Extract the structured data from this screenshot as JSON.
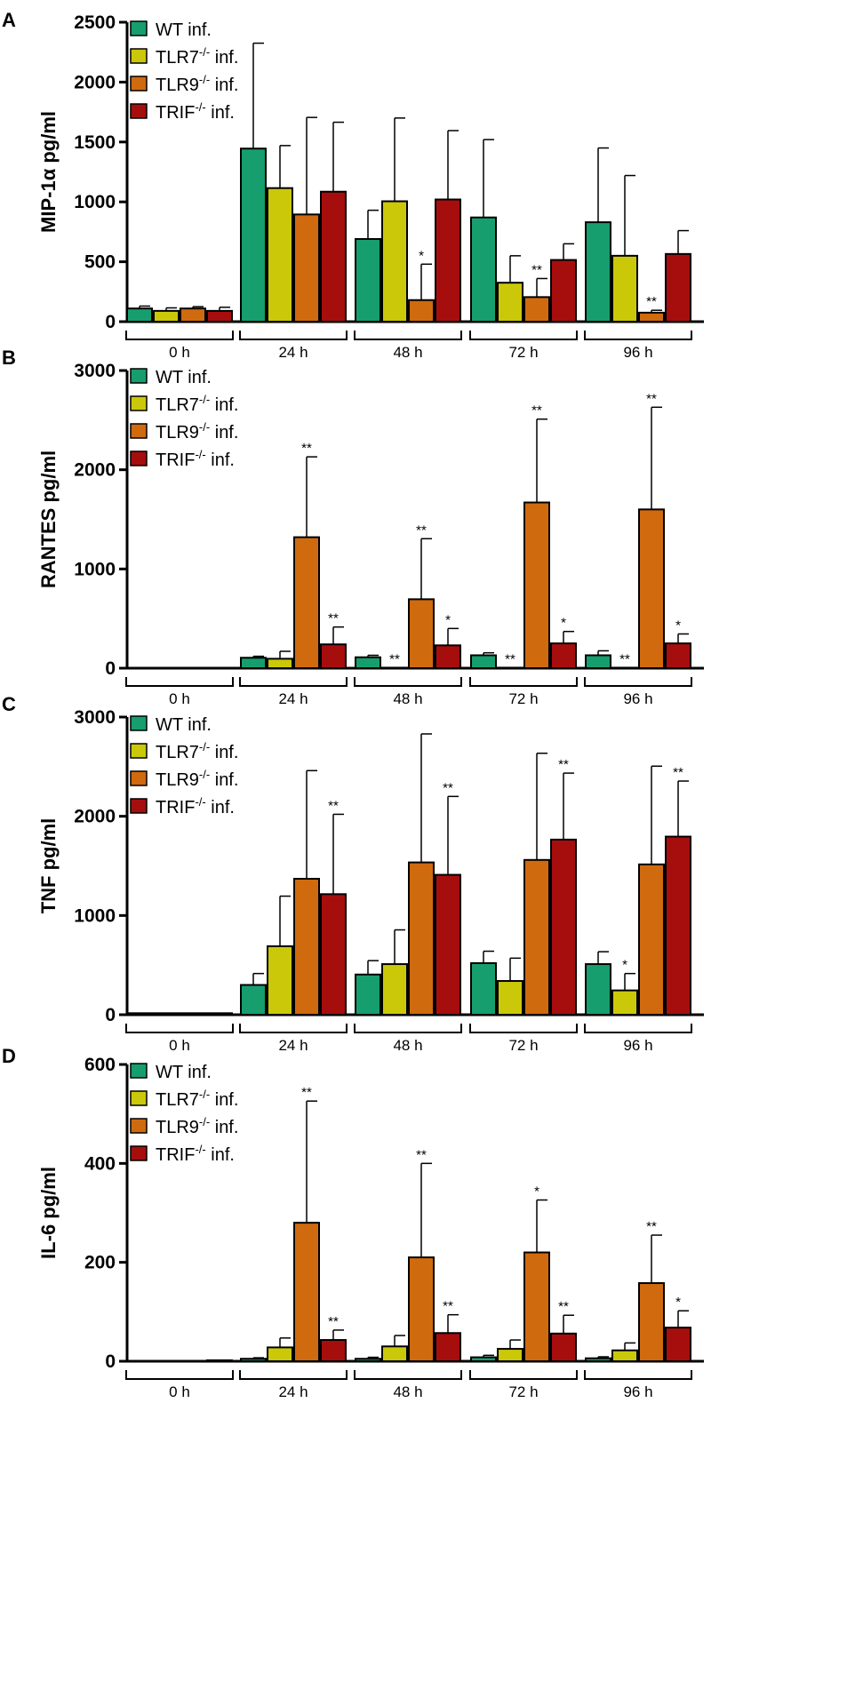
{
  "chart_data": [
    {
      "panel": "A",
      "type": "bar",
      "ylabel": "MIP-1α pg/ml",
      "ylim": [
        0,
        2500
      ],
      "yticks": [
        0,
        500,
        1000,
        1500,
        2000,
        2500
      ],
      "categories": [
        "0 h",
        "24 h",
        "48 h",
        "72 h",
        "96 h"
      ],
      "legend": [
        {
          "base": "WT",
          "sup": "",
          "suffix": " inf."
        },
        {
          "base": "TLR7",
          "sup": "-/-",
          "suffix": " inf."
        },
        {
          "base": "TLR9",
          "sup": "-/-",
          "suffix": " inf."
        },
        {
          "base": "TRIF",
          "sup": "-/-",
          "suffix": " inf."
        }
      ],
      "series": [
        {
          "name": "WT inf.",
          "values": [
            110,
            1445,
            690,
            870,
            830
          ],
          "errors": [
            20,
            880,
            240,
            650,
            620
          ],
          "annotations": [
            "",
            "",
            "",
            "",
            ""
          ]
        },
        {
          "name": "TLR7-/- inf.",
          "values": [
            90,
            1115,
            1005,
            325,
            550
          ],
          "errors": [
            25,
            355,
            695,
            225,
            670
          ],
          "annotations": [
            "",
            "",
            "",
            "",
            ""
          ]
        },
        {
          "name": "TLR9-/- inf.",
          "values": [
            110,
            895,
            180,
            205,
            75
          ],
          "errors": [
            15,
            810,
            300,
            155,
            20
          ],
          "annotations": [
            "",
            "",
            "*",
            "**",
            "**"
          ]
        },
        {
          "name": "TRIF-/- inf.",
          "values": [
            90,
            1085,
            1020,
            515,
            565
          ],
          "errors": [
            30,
            580,
            575,
            135,
            195
          ],
          "annotations": [
            "",
            "",
            "",
            "",
            ""
          ]
        }
      ]
    },
    {
      "panel": "B",
      "type": "bar",
      "ylabel": "RANTES pg/ml",
      "ylim": [
        0,
        3000
      ],
      "yticks": [
        0,
        1000,
        2000,
        3000
      ],
      "categories": [
        "0 h",
        "24 h",
        "48 h",
        "72 h",
        "96 h"
      ],
      "legend": [
        {
          "base": "WT ",
          "sup": "",
          "suffix": " inf."
        },
        {
          "base": "TLR7",
          "sup": "-/-",
          "suffix": " inf."
        },
        {
          "base": "TLR9",
          "sup": "-/-",
          "suffix": " inf."
        },
        {
          "base": "TRIF",
          "sup": "-/-",
          "suffix": " inf."
        }
      ],
      "series": [
        {
          "name": "WT inf.",
          "values": [
            0,
            105,
            110,
            130,
            130
          ],
          "errors": [
            0,
            15,
            20,
            25,
            45
          ],
          "annotations": [
            "",
            "",
            "",
            "",
            ""
          ]
        },
        {
          "name": "TLR7-/- inf.",
          "values": [
            0,
            95,
            5,
            5,
            5
          ],
          "errors": [
            0,
            75,
            0,
            0,
            0
          ],
          "annotations": [
            "",
            "",
            "**",
            "**",
            "**"
          ]
        },
        {
          "name": "TLR9-/- inf.",
          "values": [
            0,
            1320,
            695,
            1670,
            1600
          ],
          "errors": [
            0,
            810,
            610,
            840,
            1030
          ],
          "annotations": [
            "",
            "**",
            "**",
            "**",
            "**"
          ]
        },
        {
          "name": "TRIF-/- inf.",
          "values": [
            0,
            240,
            230,
            250,
            250
          ],
          "errors": [
            0,
            175,
            170,
            120,
            95
          ],
          "annotations": [
            "",
            "**",
            "*",
            "*",
            "*"
          ]
        }
      ]
    },
    {
      "panel": "C",
      "type": "bar",
      "ylabel": "TNF pg/ml",
      "ylim": [
        0,
        3000
      ],
      "yticks": [
        0,
        1000,
        2000,
        3000
      ],
      "categories": [
        "0 h",
        "24 h",
        "48 h",
        "72 h",
        "96 h"
      ],
      "legend": [
        {
          "base": "WT",
          "sup": "",
          "suffix": " inf."
        },
        {
          "base": "TLR7",
          "sup": "-/-",
          "suffix": " inf."
        },
        {
          "base": "TLR9",
          "sup": "-/-",
          "suffix": " inf."
        },
        {
          "base": "TRIF",
          "sup": "-/-",
          "suffix": " inf."
        }
      ],
      "series": [
        {
          "name": "WT inf.",
          "values": [
            15,
            300,
            405,
            520,
            510
          ],
          "errors": [
            0,
            115,
            140,
            120,
            125
          ],
          "annotations": [
            "",
            "",
            "",
            "",
            ""
          ]
        },
        {
          "name": "TLR7-/- inf.",
          "values": [
            15,
            690,
            510,
            340,
            245
          ],
          "errors": [
            0,
            505,
            345,
            230,
            170
          ],
          "annotations": [
            "",
            "",
            "",
            "",
            "*"
          ]
        },
        {
          "name": "TLR9-/- inf.",
          "values": [
            15,
            1370,
            1535,
            1560,
            1515
          ],
          "errors": [
            0,
            1090,
            1295,
            1075,
            990
          ],
          "annotations": [
            "",
            "",
            "",
            "",
            ""
          ]
        },
        {
          "name": "TRIF-/- inf.",
          "values": [
            15,
            1215,
            1410,
            1765,
            1795
          ],
          "errors": [
            0,
            805,
            790,
            670,
            560
          ],
          "annotations": [
            "",
            "**",
            "**",
            "**",
            "**"
          ]
        }
      ]
    },
    {
      "panel": "D",
      "type": "bar",
      "ylabel": "IL-6 pg/ml",
      "ylim": [
        0,
        600
      ],
      "yticks": [
        0,
        200,
        400,
        600
      ],
      "categories": [
        "0 h",
        "24 h",
        "48 h",
        "72 h",
        "96 h"
      ],
      "legend": [
        {
          "base": "WT",
          "sup": "",
          "suffix": " inf."
        },
        {
          "base": "TLR7",
          "sup": "-/-",
          "suffix": " inf."
        },
        {
          "base": "TLR9",
          "sup": "-/-",
          "suffix": " inf."
        },
        {
          "base": "TRIF",
          "sup": "-/-",
          "suffix": " inf."
        }
      ],
      "series": [
        {
          "name": "WT inf.",
          "values": [
            0,
            5,
            5,
            8,
            6
          ],
          "errors": [
            0,
            2,
            3,
            4,
            3
          ],
          "annotations": [
            "",
            "",
            "",
            "",
            ""
          ]
        },
        {
          "name": "TLR7-/- inf.",
          "values": [
            0,
            28,
            30,
            25,
            22
          ],
          "errors": [
            0,
            19,
            22,
            18,
            15
          ],
          "annotations": [
            "",
            "",
            "",
            "",
            ""
          ]
        },
        {
          "name": "TLR9-/- inf.",
          "values": [
            0,
            280,
            210,
            220,
            158
          ],
          "errors": [
            0,
            246,
            190,
            106,
            97
          ],
          "annotations": [
            "",
            "**",
            "**",
            "*",
            "**"
          ]
        },
        {
          "name": "TRIF-/- inf.",
          "values": [
            2,
            43,
            57,
            56,
            68
          ],
          "errors": [
            0,
            20,
            37,
            37,
            34
          ],
          "annotations": [
            "",
            "**",
            "**",
            "**",
            "*"
          ]
        }
      ]
    }
  ],
  "colors": {
    "series": [
      "#169E6E",
      "#CBC80A",
      "#D06A0E",
      "#A60E0E"
    ],
    "axis": "#000000"
  }
}
